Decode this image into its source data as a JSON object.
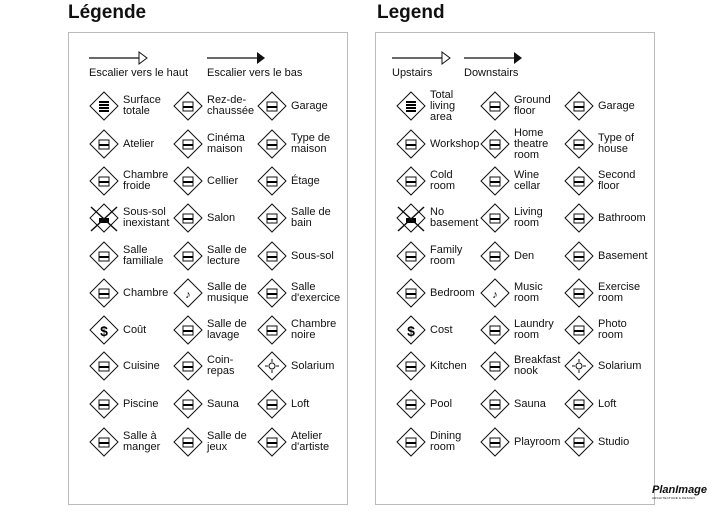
{
  "panels": [
    {
      "title": "Légende",
      "up": "Escalier vers le haut",
      "down": "Escalier vers le bas",
      "rows": [
        [
          "Surface\ntotale",
          "Rez-de-\nchaussée",
          "Garage"
        ],
        [
          "Atelier",
          "Cinéma\nmaison",
          "Type de\nmaison"
        ],
        [
          "Chambre\nfroide",
          "Cellier",
          "Étage"
        ],
        [
          "Sous-sol\ninexistant",
          "Salon",
          "Salle de\nbain"
        ],
        [
          "Salle\nfamiliale",
          "Salle de\nlecture",
          "Sous-sol"
        ],
        [
          "Chambre",
          "Salle de\nmusique",
          "Salle\nd'exercice"
        ],
        [
          "Coût",
          "Salle de\nlavage",
          "Chambre\nnoire"
        ],
        [
          "Cuisine",
          "Coin-\nrepas",
          "Solarium"
        ],
        [
          "Piscine",
          "Sauna",
          "Loft"
        ],
        [
          "Salle à\nmanger",
          "Salle de\njeux",
          "Atelier\nd'artiste"
        ]
      ]
    },
    {
      "title": "Legend",
      "up": "Upstairs",
      "down": "Downstairs",
      "rows": [
        [
          "Total\nliving\narea",
          "Ground\nfloor",
          "Garage"
        ],
        [
          "Workshop",
          "Home\ntheatre\nroom",
          "Type of\nhouse"
        ],
        [
          "Cold\nroom",
          "Wine\ncellar",
          "Second\nfloor"
        ],
        [
          "No\nbasement",
          "Living\nroom",
          "Bathroom"
        ],
        [
          "Family\nroom",
          "Den",
          "Basement"
        ],
        [
          "Bedroom",
          "Music\nroom",
          "Exercise\nroom"
        ],
        [
          "Cost",
          "Laundry\nroom",
          "Photo\nroom"
        ],
        [
          "Kitchen",
          "Breakfast\nnook",
          "Solarium"
        ],
        [
          "Pool",
          "Sauna",
          "Loft"
        ],
        [
          "Dining\nroom",
          "Playroom",
          "Studio"
        ]
      ]
    }
  ],
  "icons": [
    [
      "stacked-floors-icon",
      "ground-floor-icon",
      "garage-icon"
    ],
    [
      "hammer-icon",
      "theatre-icon",
      "checkbox-house-icon"
    ],
    [
      "thermometer-icon",
      "wine-bottle-icon",
      "second-floor-icon"
    ],
    [
      "no-basement-icon",
      "sofa-icon",
      "sink-icon"
    ],
    [
      "tv-icon",
      "book-icon",
      "basement-icon"
    ],
    [
      "bed-icon",
      "music-note-icon",
      "dumbbell-icon"
    ],
    [
      "dollar-icon",
      "laundry-basket-icon",
      "darkroom-icon"
    ],
    [
      "plant-icon",
      "cup-icon",
      "sun-icon"
    ],
    [
      "pool-icon",
      "sauna-person-icon",
      "loft-icon"
    ],
    [
      "plate-icon",
      "game-icon",
      "palette-icon"
    ]
  ],
  "logo": {
    "name": "PlanImage",
    "tagline": "ARCHITECTURE & DESIGN"
  }
}
